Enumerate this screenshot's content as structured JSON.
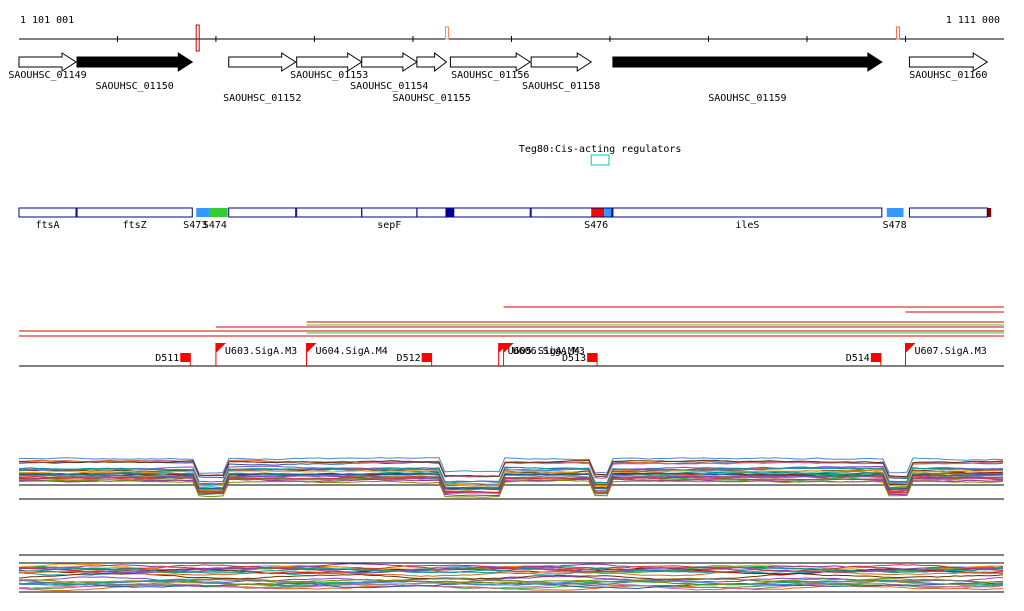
{
  "ruler": {
    "start_label": "1 101 001",
    "end_label": "1 111 000",
    "start": 1101001,
    "end": 1111000
  },
  "genes": [
    {
      "name": "SAOUHSC_01149",
      "start": 1101001,
      "end": 1101580,
      "strand": "+",
      "fill": "#ffffff",
      "row": 0
    },
    {
      "name": "SAOUHSC_01150",
      "start": 1101590,
      "end": 1102760,
      "strand": "+",
      "fill": "#000000",
      "row": 1
    },
    {
      "name": "SAOUHSC_01152",
      "start": 1103130,
      "end": 1103810,
      "strand": "+",
      "fill": "#ffffff",
      "row": 2
    },
    {
      "name": "SAOUHSC_01153",
      "start": 1103820,
      "end": 1104480,
      "strand": "+",
      "fill": "#ffffff",
      "row": 0
    },
    {
      "name": "SAOUHSC_01154",
      "start": 1104480,
      "end": 1105040,
      "strand": "+",
      "fill": "#ffffff",
      "row": 1
    },
    {
      "name": "SAOUHSC_01155",
      "start": 1105040,
      "end": 1105340,
      "strand": "+",
      "fill": "#ffffff",
      "row": 2
    },
    {
      "name": "SAOUHSC_01156",
      "start": 1105380,
      "end": 1106190,
      "strand": "+",
      "fill": "#ffffff",
      "row": 0
    },
    {
      "name": "SAOUHSC_01158",
      "start": 1106200,
      "end": 1106810,
      "strand": "+",
      "fill": "#ffffff",
      "row": 1
    },
    {
      "name": "SAOUHSC_01159",
      "start": 1107030,
      "end": 1109760,
      "strand": "+",
      "fill": "#000000",
      "row": 2
    },
    {
      "name": "SAOUHSC_01160",
      "start": 1110040,
      "end": 1110830,
      "strand": "+",
      "fill": "#ffffff",
      "row": 0
    }
  ],
  "regulators": [
    {
      "label": "Teg80:Cis-acting regulators",
      "start": 1106810,
      "end": 1106990,
      "color": "#00c8c8"
    }
  ],
  "segments": {
    "blocks": [
      {
        "start": 1101001,
        "end": 1101580,
        "label": "ftsA"
      },
      {
        "start": 1101590,
        "end": 1102760,
        "label": "ftsZ"
      },
      {
        "start": 1103130,
        "end": 1103810,
        "label": ""
      },
      {
        "start": 1103820,
        "end": 1104480,
        "label": ""
      },
      {
        "start": 1104480,
        "end": 1105040,
        "label": "sepF"
      },
      {
        "start": 1105040,
        "end": 1106190,
        "label": ""
      },
      {
        "start": 1106200,
        "end": 1107020,
        "label": ""
      },
      {
        "start": 1107030,
        "end": 1109760,
        "label": "ileS"
      },
      {
        "start": 1110040,
        "end": 1110830,
        "label": ""
      }
    ],
    "fills": [
      {
        "start": 1102800,
        "end": 1102930,
        "color": "#3399ff"
      },
      {
        "start": 1102930,
        "end": 1103120,
        "color": "#33cc33"
      },
      {
        "start": 1105330,
        "end": 1105420,
        "color": "#000099"
      },
      {
        "start": 1106810,
        "end": 1106940,
        "color": "#ff0000"
      },
      {
        "start": 1106940,
        "end": 1107030,
        "color": "#3399ff"
      },
      {
        "start": 1109810,
        "end": 1109980,
        "color": "#3399ff"
      },
      {
        "start": 1110830,
        "end": 1110870,
        "color": "#800000"
      }
    ],
    "labels": [
      {
        "text": "S473",
        "pos": 1102790
      },
      {
        "text": "S474",
        "pos": 1102990
      },
      {
        "text": "S476",
        "pos": 1106860
      },
      {
        "text": "S478",
        "pos": 1109890
      }
    ]
  },
  "ruler_marks": [
    {
      "pos": 1102820,
      "color": "#c00000"
    },
    {
      "pos": 1105350,
      "color": "#ff8060"
    },
    {
      "pos": 1109930,
      "color": "#ff6040"
    }
  ],
  "promoters": [
    {
      "label": "U603.SigA.M3",
      "pos": 1103000,
      "dir": "+"
    },
    {
      "label": "U604.SigA.M4",
      "pos": 1103920,
      "dir": "+"
    },
    {
      "label": "U605.SigA.M4",
      "pos": 1105870,
      "dir": "+"
    },
    {
      "label": "U606.SigA.M3",
      "pos": 1105920,
      "dir": "+"
    },
    {
      "label": "U607.SigA.M3",
      "pos": 1110000,
      "dir": "+"
    }
  ],
  "terminators": [
    {
      "label": "D511",
      "pos": 1102750
    },
    {
      "label": "D512",
      "pos": 1105200
    },
    {
      "label": "D513",
      "pos": 1106880
    },
    {
      "label": "D514",
      "pos": 1109760
    }
  ],
  "transcripts": [
    {
      "start": 1105920,
      "end": 1111000,
      "y": 307,
      "color": "#dd0000"
    },
    {
      "start": 1110000,
      "end": 1111000,
      "y": 312,
      "color": "#dd0000"
    },
    {
      "start": 1103920,
      "end": 1111000,
      "y": 322,
      "color": "#dd0000"
    },
    {
      "start": 1103000,
      "end": 1111000,
      "y": 327,
      "color": "#dd0000"
    },
    {
      "start": 1101001,
      "end": 1111000,
      "y": 331,
      "color": "#dd0000"
    },
    {
      "start": 1101001,
      "end": 1111000,
      "y": 336,
      "color": "#dd0000"
    },
    {
      "start": 1103920,
      "end": 1111000,
      "y": 325,
      "color": "#33cc33"
    },
    {
      "start": 1103920,
      "end": 1111000,
      "y": 333,
      "color": "#33cc33"
    }
  ],
  "track_colors": [
    "#e06020",
    "#33aa33",
    "#8844cc",
    "#cc3333",
    "#4488dd",
    "#888800",
    "#009999",
    "#cc66aa",
    "#663300",
    "#ff9900",
    "#2255aa",
    "#777777",
    "#aa0000",
    "#00aa66",
    "#993399"
  ]
}
